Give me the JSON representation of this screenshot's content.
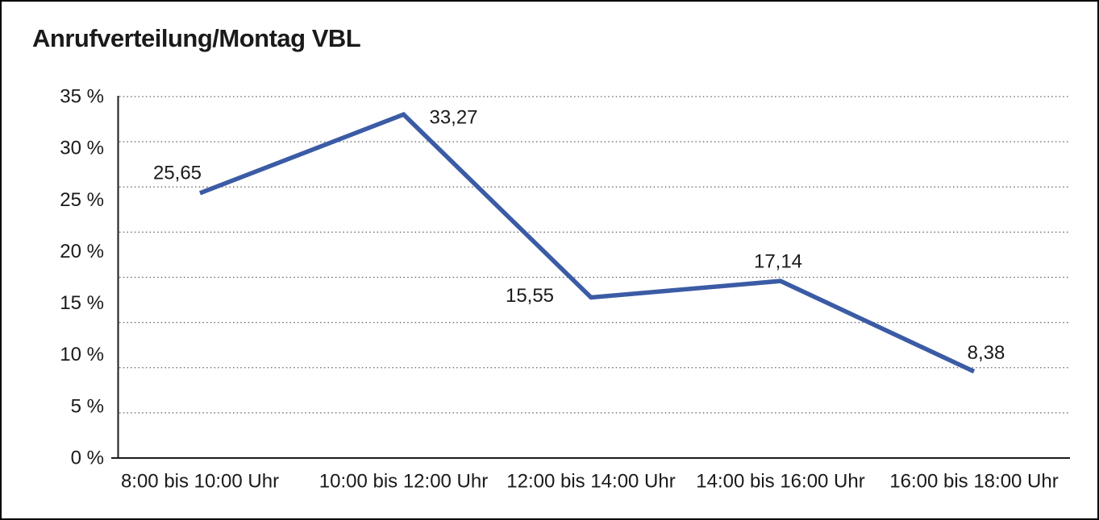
{
  "chart_data": {
    "type": "line",
    "title": "Anrufverteilung/Montag VBL",
    "categories": [
      "8:00 bis 10:00 Uhr",
      "10:00 bis 12:00 Uhr",
      "12:00 bis 14:00 Uhr",
      "14:00 bis 16:00 Uhr",
      "16:00 bis 18:00 Uhr"
    ],
    "values": [
      25.65,
      33.27,
      15.55,
      17.14,
      8.38
    ],
    "value_labels": [
      "25,65",
      "33,27",
      "15,55",
      "17,14",
      "8,38"
    ],
    "xlabel": "",
    "ylabel": "",
    "ylim": [
      0,
      35
    ],
    "y_ticks": [
      35,
      30,
      25,
      20,
      15,
      10,
      5,
      0
    ],
    "y_tick_labels": [
      "35 %",
      "30 %",
      "25 %",
      "20 %",
      "15 %",
      "10 %",
      "5 %",
      "0 %"
    ],
    "grid": "dotted-horizontal",
    "legend": "none",
    "line_color": "#3B5BA5",
    "axis_color": "#1A1A1A",
    "grid_color": "#606060",
    "text_color": "#1A1A1A"
  }
}
